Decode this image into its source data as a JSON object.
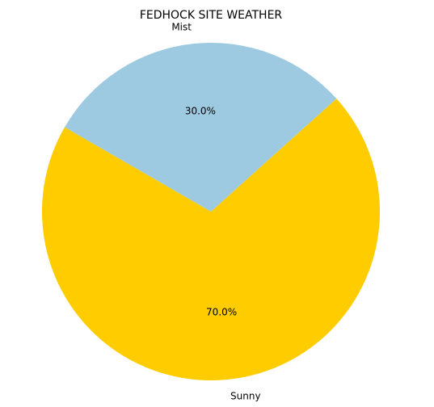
{
  "chart_data": {
    "type": "pie",
    "title": "FEDHOCK SITE WEATHER",
    "slices": [
      {
        "label": "Sunny",
        "value": 70.0,
        "pct_label": "70.0%",
        "color": "#FFCC00"
      },
      {
        "label": "Mist",
        "value": 30.0,
        "pct_label": "30.0%",
        "color": "#9ECAE1"
      }
    ],
    "start_angle_deg": 150,
    "direction": "counterclockwise",
    "grid": false,
    "legend": "none"
  }
}
